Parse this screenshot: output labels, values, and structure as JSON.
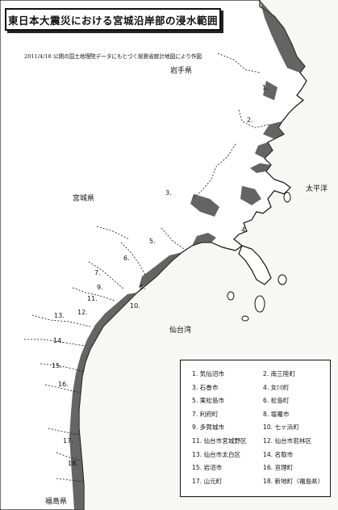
{
  "title": "東日本大震災における宮城沿岸部の浸水範囲",
  "subtitle": "2011/4/18 公開の国土地理院データにもとづく総務省統計地図により作図",
  "labels": {
    "iwate": "岩手県",
    "miyagi": "宮城県",
    "pacific": "太平洋",
    "sendai_bay": "仙台湾",
    "fukushima": "福島県"
  },
  "area_numbers": [
    "1.",
    "2.",
    "3.",
    "4.",
    "5.",
    "6.",
    "7.",
    "8.",
    "9.",
    "10.",
    "11.",
    "12.",
    "13.",
    "14.",
    "15.",
    "16.",
    "17.",
    "18."
  ],
  "legend": [
    "1. 気仙沼市",
    "2. 南三陸町",
    "3. 石巻市",
    "4. 女川町",
    "5. 東松島市",
    "6. 松島町",
    "7. 利府町",
    "8. 塩竈市",
    "9. 多賀城市",
    "10. 七ヶ浜町",
    "11. 仙台市宮城野区",
    "12. 仙台市若林区",
    "13. 仙台市太白区",
    "14. 名取市",
    "15. 岩沼市",
    "16. 亘理町",
    "17. 山元町",
    "18. 新地町（福島県）"
  ],
  "colors": {
    "flood": "#4a4a4a",
    "land": "#ffffff",
    "sea": "#f7f7f5",
    "border": "#111111"
  }
}
